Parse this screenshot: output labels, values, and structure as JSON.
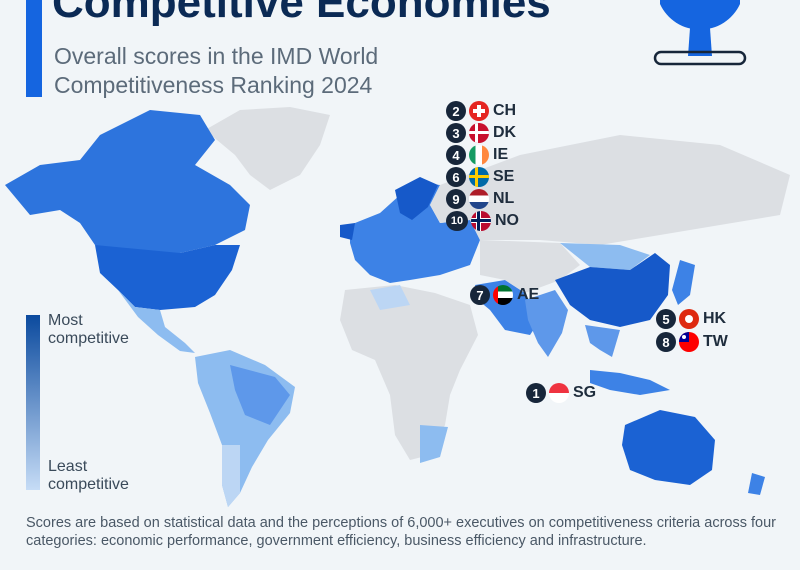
{
  "header": {
    "title": "Competitive Economies",
    "subtitle_line1": "Overall scores in the IMD World",
    "subtitle_line2": "Competitiveness Ranking 2024"
  },
  "legend": {
    "top_line1": "Most",
    "top_line2": "competitive",
    "bottom_line1": "Least",
    "bottom_line2": "competitive",
    "color_high": "#0b4a9e",
    "color_low": "#c6dcf6"
  },
  "rankings": [
    {
      "rank": "1",
      "code": "SG"
    },
    {
      "rank": "2",
      "code": "CH"
    },
    {
      "rank": "3",
      "code": "DK"
    },
    {
      "rank": "4",
      "code": "IE"
    },
    {
      "rank": "5",
      "code": "HK"
    },
    {
      "rank": "6",
      "code": "SE"
    },
    {
      "rank": "7",
      "code": "AE"
    },
    {
      "rank": "8",
      "code": "TW"
    },
    {
      "rank": "9",
      "code": "NL"
    },
    {
      "rank": "10",
      "code": "NO"
    }
  ],
  "footnote": "Scores are based on statistical data and the perceptions of 6,000+ executives on competitiveness criteria across four categories: economic performance, government efficiency, business efficiency and infrastructure.",
  "colors": {
    "background": "#f1f5f8",
    "no_data": "#dcdfe3",
    "dark": "#1659c9",
    "mid": "#3d82e6",
    "light": "#8dbcf0",
    "accent": "#1565e0"
  }
}
